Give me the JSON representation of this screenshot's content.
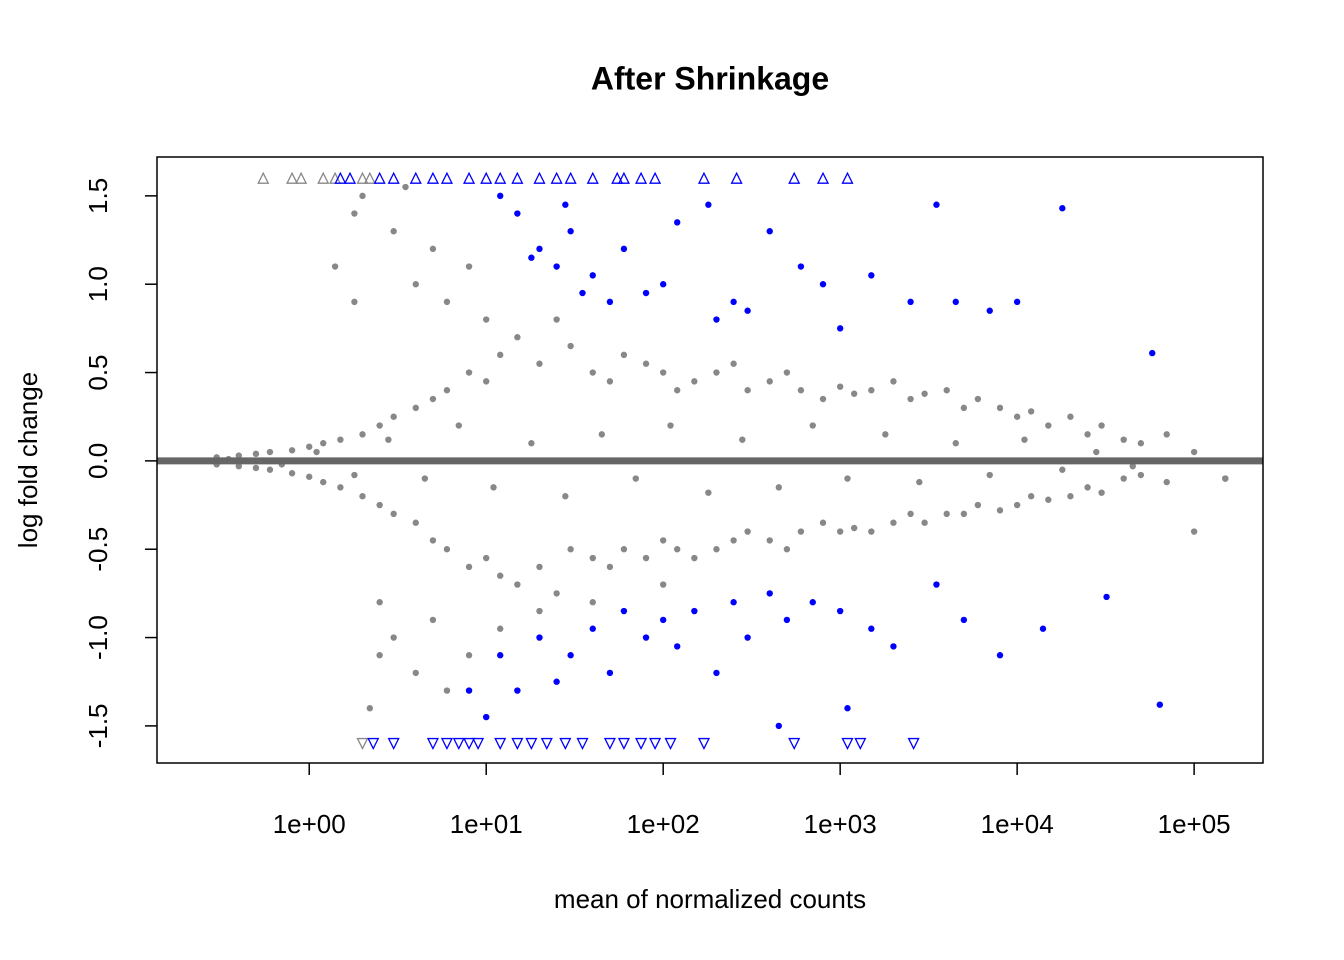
{
  "chart_data": {
    "type": "scatter",
    "title": "After Shrinkage",
    "xlabel": "mean of normalized counts",
    "ylabel": "log fold change",
    "xscale": "log",
    "xlim": [
      0.138,
      245000
    ],
    "ylim": [
      -1.71,
      1.72
    ],
    "xticks": [
      {
        "value": 1,
        "label": "1e+00"
      },
      {
        "value": 10,
        "label": "1e+01"
      },
      {
        "value": 100,
        "label": "1e+02"
      },
      {
        "value": 1000,
        "label": "1e+03"
      },
      {
        "value": 10000,
        "label": "1e+04"
      },
      {
        "value": 100000,
        "label": "1e+05"
      }
    ],
    "yticks": [
      -1.5,
      {
        "value": -1,
        "label": "-1.0"
      },
      -0.5,
      {
        "value": 0,
        "label": "0.0"
      },
      0.5,
      {
        "value": 1,
        "label": "1.0"
      },
      1.5
    ],
    "reference_line": {
      "value": 0,
      "color": "#666666"
    },
    "series": [
      {
        "color": "#888888",
        "shape": "circle",
        "x": [
          0.3,
          0.4,
          0.5,
          0.6,
          0.8,
          1,
          1.2,
          1.5,
          2,
          2.5,
          3,
          4,
          5,
          6,
          8,
          10,
          12,
          15,
          20,
          25,
          30,
          40,
          50,
          60,
          80,
          100,
          120,
          150,
          200,
          250,
          300,
          400,
          500,
          600,
          800,
          1000,
          1200,
          1500,
          2000,
          2500,
          3000,
          4000,
          5000,
          6000,
          8000,
          10000,
          12000,
          15000,
          20000,
          25000,
          30000,
          40000,
          50000,
          70000,
          100000,
          150000,
          0.3,
          0.4,
          0.5,
          0.6,
          0.8,
          1,
          1.2,
          1.5,
          2,
          2.5,
          3,
          4,
          5,
          6,
          8,
          10,
          12,
          15,
          20,
          25,
          30,
          40,
          50,
          60,
          80,
          100,
          120,
          150,
          200,
          250,
          300,
          400,
          500,
          600,
          800,
          1000,
          1200,
          1500,
          2000,
          2500,
          3000,
          4000,
          5000,
          6000,
          8000,
          10000,
          12000,
          15000,
          20000,
          25000,
          30000,
          40000,
          50000,
          70000,
          100000,
          150000,
          0.35,
          0.7,
          1.1,
          1.8,
          2.8,
          4.5,
          7,
          11,
          18,
          28,
          45,
          70,
          110,
          180,
          280,
          450,
          700,
          1100,
          1800,
          2800,
          4500,
          7000,
          11000,
          18000,
          28000,
          45000,
          3,
          4,
          5,
          6,
          8,
          10,
          1.8,
          2,
          1.4,
          3,
          4,
          5,
          6,
          8,
          2.5,
          2.2,
          12,
          20,
          40,
          100,
          1.8,
          2.5,
          3.5
        ],
        "values": [
          0.02,
          0.03,
          0.04,
          0.05,
          0.06,
          0.08,
          0.1,
          0.12,
          0.15,
          0.2,
          0.25,
          0.3,
          0.35,
          0.4,
          0.5,
          0.45,
          0.6,
          0.7,
          0.55,
          0.8,
          0.65,
          0.5,
          0.45,
          0.6,
          0.55,
          0.5,
          0.4,
          0.45,
          0.5,
          0.55,
          0.4,
          0.45,
          0.5,
          0.4,
          0.35,
          0.42,
          0.38,
          0.4,
          0.45,
          0.35,
          0.38,
          0.4,
          0.3,
          0.35,
          0.3,
          0.25,
          0.28,
          0.2,
          0.25,
          0.15,
          0.2,
          0.12,
          0.1,
          0.15,
          0.05,
          -0.1,
          -0.02,
          -0.03,
          -0.04,
          -0.05,
          -0.07,
          -0.09,
          -0.12,
          -0.15,
          -0.2,
          -0.25,
          -0.3,
          -0.35,
          -0.45,
          -0.5,
          -0.6,
          -0.55,
          -0.65,
          -0.7,
          -0.6,
          -0.75,
          -0.5,
          -0.55,
          -0.6,
          -0.5,
          -0.55,
          -0.45,
          -0.5,
          -0.55,
          -0.5,
          -0.45,
          -0.4,
          -0.45,
          -0.5,
          -0.4,
          -0.35,
          -0.4,
          -0.38,
          -0.4,
          -0.35,
          -0.3,
          -0.35,
          -0.3,
          -0.3,
          -0.25,
          -0.28,
          -0.25,
          -0.2,
          -0.22,
          -0.2,
          -0.15,
          -0.18,
          -0.1,
          -0.08,
          -0.12,
          -0.4,
          -0.1,
          0.01,
          -0.02,
          0.05,
          -0.08,
          0.12,
          -0.1,
          0.2,
          -0.15,
          0.1,
          -0.2,
          0.15,
          -0.1,
          0.2,
          -0.18,
          0.12,
          -0.15,
          0.2,
          -0.1,
          0.15,
          -0.12,
          0.1,
          -0.08,
          0.12,
          -0.05,
          0.05,
          -0.03,
          1.3,
          1.0,
          1.2,
          0.9,
          1.1,
          0.8,
          1.4,
          1.5,
          1.1,
          -1.0,
          -1.2,
          -0.9,
          -1.3,
          -1.1,
          -1.1,
          -1.4,
          -0.95,
          -0.85,
          -0.8,
          -0.7,
          0.9,
          -0.8,
          1.55
        ]
      },
      {
        "color": "#0000ff",
        "shape": "circle",
        "x": [
          15,
          20,
          25,
          30,
          35,
          40,
          50,
          60,
          80,
          100,
          120,
          180,
          200,
          250,
          300,
          400,
          600,
          800,
          1000,
          1500,
          2500,
          3500,
          4500,
          7000,
          10000,
          18000,
          58000,
          12,
          18,
          28,
          8,
          10,
          12,
          15,
          20,
          25,
          30,
          40,
          50,
          60,
          80,
          100,
          120,
          150,
          200,
          250,
          300,
          400,
          500,
          700,
          1000,
          1500,
          2000,
          3500,
          5000,
          8000,
          14000,
          32000,
          64000,
          450,
          1100
        ],
        "values": [
          1.4,
          1.2,
          1.1,
          1.3,
          0.95,
          1.05,
          0.9,
          1.2,
          0.95,
          1.0,
          1.35,
          1.45,
          0.8,
          0.9,
          0.85,
          1.3,
          1.1,
          1.0,
          0.75,
          1.05,
          0.9,
          1.45,
          0.9,
          0.85,
          0.9,
          1.43,
          0.61,
          1.5,
          1.15,
          1.45,
          -1.3,
          -1.45,
          -1.1,
          -1.3,
          -1.0,
          -1.25,
          -1.1,
          -0.95,
          -1.2,
          -0.85,
          -1.0,
          -0.9,
          -1.05,
          -0.85,
          -1.2,
          -0.8,
          -1.0,
          -0.75,
          -0.9,
          -0.8,
          -0.85,
          -0.95,
          -1.05,
          -0.7,
          -0.9,
          -1.1,
          -0.95,
          -0.77,
          -1.38,
          -1.5,
          -1.4
        ]
      },
      {
        "color": "#888888",
        "shape": "triangle-up",
        "x": [
          0.55,
          0.8,
          0.9,
          1.2,
          1.4,
          2,
          2.2
        ],
        "values": [
          1.6,
          1.6,
          1.6,
          1.6,
          1.6,
          1.6,
          1.6
        ]
      },
      {
        "color": "#0000ff",
        "shape": "triangle-up",
        "x": [
          1.5,
          1.7,
          2.5,
          3,
          4,
          5,
          6,
          8,
          10,
          12,
          15,
          20,
          25,
          30,
          40,
          55,
          60,
          75,
          90,
          170,
          260,
          550,
          800,
          1100
        ],
        "values": [
          1.6,
          1.6,
          1.6,
          1.6,
          1.6,
          1.6,
          1.6,
          1.6,
          1.6,
          1.6,
          1.6,
          1.6,
          1.6,
          1.6,
          1.6,
          1.6,
          1.6,
          1.6,
          1.6,
          1.6,
          1.6,
          1.6,
          1.6,
          1.6
        ]
      },
      {
        "color": "#888888",
        "shape": "triangle-down",
        "x": [
          2
        ],
        "values": [
          -1.6
        ]
      },
      {
        "color": "#0000ff",
        "shape": "triangle-down",
        "x": [
          2.3,
          3,
          5,
          6,
          7,
          8,
          9,
          12,
          15,
          18,
          22,
          28,
          35,
          50,
          60,
          75,
          90,
          110,
          170,
          550,
          1100,
          1300,
          2600
        ],
        "values": [
          -1.6,
          -1.6,
          -1.6,
          -1.6,
          -1.6,
          -1.6,
          -1.6,
          -1.6,
          -1.6,
          -1.6,
          -1.6,
          -1.6,
          -1.6,
          -1.6,
          -1.6,
          -1.6,
          -1.6,
          -1.6,
          -1.6,
          -1.6,
          -1.6,
          -1.6,
          -1.6
        ]
      }
    ]
  }
}
